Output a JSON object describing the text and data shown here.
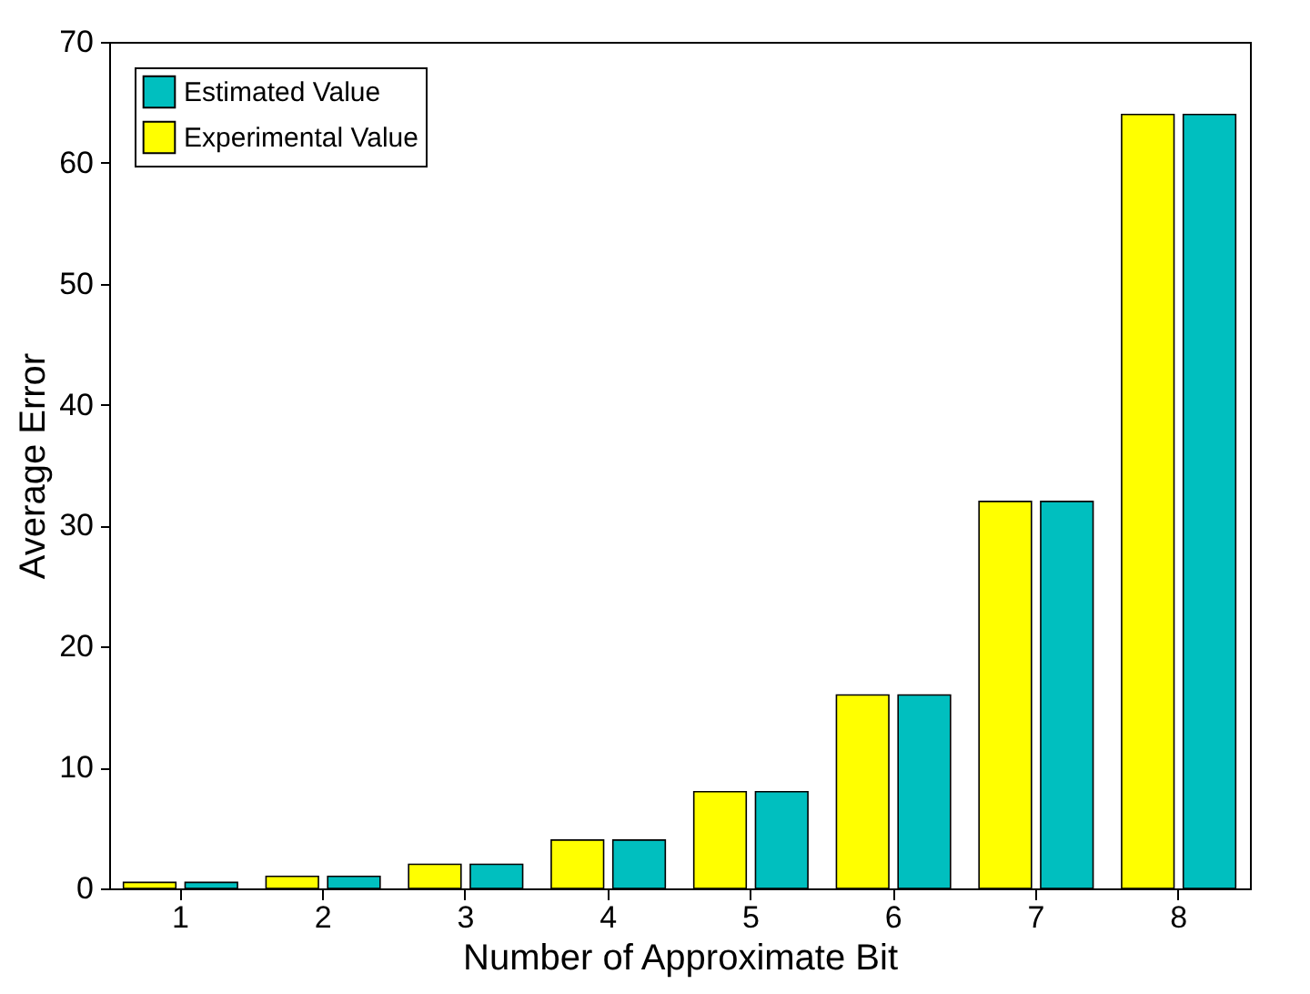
{
  "chart_data": {
    "type": "bar",
    "xlabel": "Number of Approximate Bit",
    "ylabel": "Average Error",
    "categories": [
      "1",
      "2",
      "3",
      "4",
      "5",
      "6",
      "7",
      "8"
    ],
    "series": [
      {
        "name": "Experimental Value",
        "color": "#ffff00",
        "values": [
          0.5,
          1,
          2,
          4,
          8,
          16,
          32,
          64
        ]
      },
      {
        "name": "Estimated Value",
        "color": "#00bfbf",
        "values": [
          0.5,
          1,
          2,
          4,
          8,
          16,
          32,
          64
        ]
      }
    ],
    "ylim": [
      0,
      70
    ],
    "yticks": [
      0,
      10,
      20,
      30,
      40,
      50,
      60,
      70
    ],
    "grid": false,
    "legend": "top left"
  }
}
